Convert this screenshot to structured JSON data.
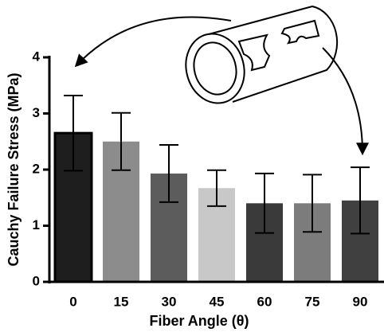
{
  "chart_data": {
    "type": "bar",
    "xlabel": "Fiber Angle (θ)",
    "ylabel": "Cauchy Failure Stress (MPa)",
    "categories": [
      "0",
      "15",
      "30",
      "45",
      "60",
      "75",
      "90"
    ],
    "values": [
      2.65,
      2.5,
      1.93,
      1.67,
      1.4,
      1.4,
      1.45
    ],
    "errors": [
      0.67,
      0.51,
      0.51,
      0.32,
      0.53,
      0.51,
      0.59
    ],
    "colors": [
      "#1e1e1e",
      "#8c8c8c",
      "#5c5c5c",
      "#c8c8c8",
      "#3a3a3a",
      "#7c7c7c",
      "#404040"
    ],
    "ylim": [
      0,
      4
    ],
    "yticks": [
      0,
      1,
      2,
      3,
      4
    ]
  }
}
